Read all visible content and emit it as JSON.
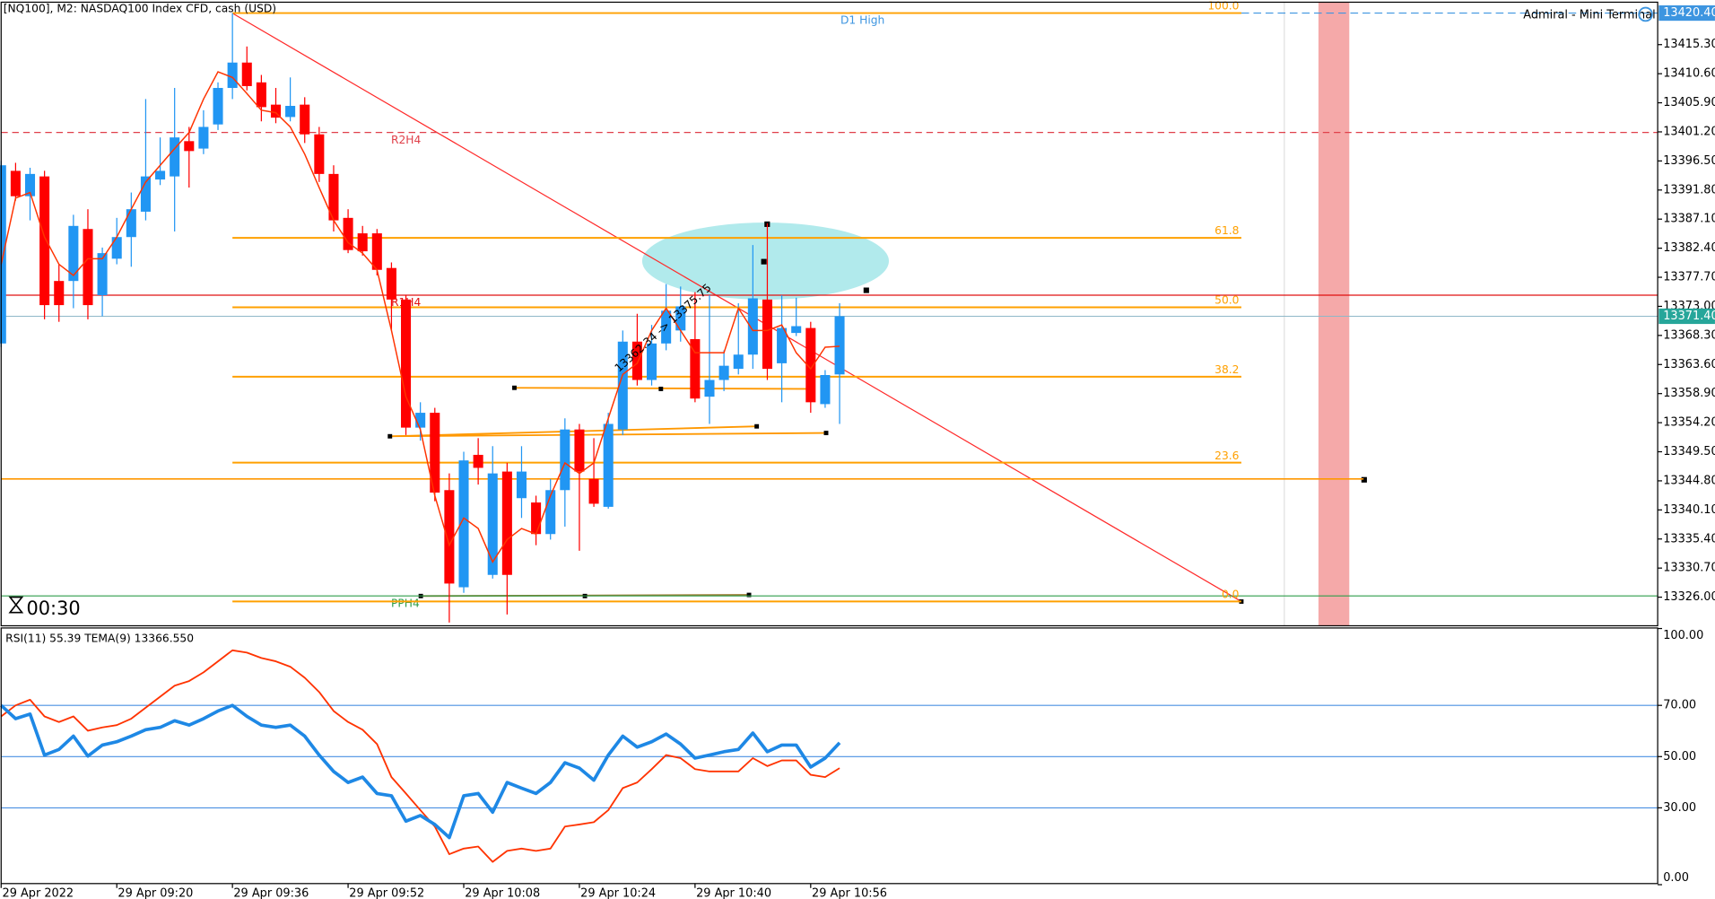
{
  "chart_data": [
    {
      "type": "candlestick",
      "title": "[NQ100], M2:  NASDAQ100 Index CFD, cash (USD)",
      "categories": [
        "29 Apr 2022",
        null,
        null,
        null,
        null,
        null,
        null,
        null,
        "29 Apr 09:20",
        null,
        null,
        null,
        null,
        null,
        null,
        null,
        "29 Apr 09:36",
        null,
        null,
        null,
        null,
        null,
        null,
        null,
        "29 Apr 09:52",
        null,
        null,
        null,
        null,
        null,
        null,
        null,
        "29 Apr 10:08",
        null,
        null,
        null,
        null,
        null,
        null,
        null,
        "29 Apr 10:24",
        null,
        null,
        null,
        null,
        null,
        null,
        null,
        "29 Apr 10:40",
        null,
        null,
        null,
        null,
        null,
        null,
        null,
        "29 Apr 10:56",
        null,
        null
      ],
      "open": [
        13367.0,
        13394.9,
        13390.8,
        13394.0,
        13377.1,
        13377.1,
        13385.5,
        13374.8,
        13380.7,
        13384.2,
        13388.3,
        13393.5,
        13394.0,
        13399.7,
        13398.5,
        13402.4,
        13408.3,
        13412.4,
        13409.2,
        13405.6,
        13403.6,
        13405.6,
        13400.8,
        13394.4,
        13387.3,
        13384.8,
        13384.8,
        13379.2,
        13374.1,
        13353.4,
        13355.8,
        13343.3,
        13327.6,
        13349.0,
        13329.6,
        13346.3,
        13342.0,
        13341.3,
        13336.2,
        13343.3,
        13353.1,
        13345.1,
        13340.6,
        13353.1,
        13367.3,
        13361.1,
        13367.0,
        13369.1,
        13367.7,
        13358.4,
        13361.1,
        13362.9,
        13365.2,
        13374.1,
        13363.8,
        13368.7,
        13369.5,
        13357.2,
        13362.0
      ],
      "high": [
        13396.5,
        13396.2,
        13395.4,
        13394.9,
        13379.8,
        13387.8,
        13388.7,
        13382.5,
        13387.3,
        13391.4,
        13406.5,
        13400.3,
        13408.3,
        13402.0,
        13404.7,
        13409.2,
        13420.4,
        13415.0,
        13410.4,
        13408.3,
        13410.0,
        13406.8,
        13402.0,
        13395.8,
        13388.7,
        13386.0,
        13385.5,
        13380.1,
        13374.8,
        13357.5,
        13356.6,
        13346.0,
        13349.5,
        13351.7,
        13350.4,
        13347.7,
        13350.4,
        13342.4,
        13345.1,
        13354.9,
        13354.0,
        13351.7,
        13355.8,
        13369.1,
        13371.8,
        13370.0,
        13376.6,
        13376.2,
        13375.3,
        13374.8,
        13365.9,
        13373.5,
        13382.9,
        13386.4,
        13374.8,
        13374.4,
        13370.5,
        13362.7,
        13373.5
      ],
      "low": [
        13366.4,
        13390.1,
        13386.9,
        13370.9,
        13370.5,
        13372.7,
        13370.9,
        13371.4,
        13379.8,
        13379.4,
        13386.9,
        13392.6,
        13385.1,
        13392.2,
        13397.6,
        13401.5,
        13406.5,
        13407.9,
        13402.9,
        13402.6,
        13402.9,
        13399.4,
        13393.1,
        13385.1,
        13381.6,
        13381.2,
        13378.0,
        13369.1,
        13352.2,
        13351.3,
        13341.5,
        13321.9,
        13326.7,
        13344.2,
        13329.0,
        13323.2,
        13338.8,
        13334.4,
        13335.3,
        13337.4,
        13333.5,
        13340.6,
        13340.3,
        13352.2,
        13360.2,
        13360.2,
        13365.9,
        13367.3,
        13357.5,
        13354.0,
        13359.3,
        13362.0,
        13362.9,
        13361.1,
        13357.5,
        13368.2,
        13355.8,
        13356.6,
        13354.0
      ],
      "close": [
        13395.8,
        13390.8,
        13394.4,
        13373.2,
        13373.2,
        13386.0,
        13373.2,
        13381.6,
        13384.2,
        13388.7,
        13394.0,
        13394.9,
        13400.3,
        13398.1,
        13402.0,
        13408.3,
        13412.4,
        13408.6,
        13405.2,
        13403.5,
        13405.4,
        13400.8,
        13394.4,
        13386.9,
        13382.1,
        13381.9,
        13378.9,
        13374.1,
        13353.4,
        13355.8,
        13342.9,
        13328.2,
        13348.1,
        13346.9,
        13346.0,
        13329.6,
        13346.3,
        13336.2,
        13343.3,
        13353.1,
        13346.3,
        13341.1,
        13354.0,
        13367.3,
        13361.1,
        13367.0,
        13372.3,
        13373.0,
        13358.1,
        13361.1,
        13363.4,
        13365.2,
        13374.3,
        13362.9,
        13369.5,
        13369.8,
        13357.5,
        13361.9,
        13371.4
      ],
      "tema": [
        13379.8,
        13390.5,
        13391.4,
        13384.2,
        13379.8,
        13378.0,
        13380.7,
        13380.7,
        13384.2,
        13388.7,
        13393.1,
        13395.8,
        13398.5,
        13401.1,
        13406.5,
        13410.9,
        13410.0,
        13407.4,
        13404.7,
        13404.3,
        13402.0,
        13397.6,
        13392.2,
        13386.9,
        13383.3,
        13381.6,
        13378.9,
        13369.1,
        13358.4,
        13353.1,
        13342.4,
        13334.4,
        13338.8,
        13337.1,
        13331.7,
        13335.3,
        13337.1,
        13336.2,
        13342.4,
        13347.7,
        13346.0,
        13347.7,
        13354.9,
        13362.0,
        13363.8,
        13369.1,
        13372.7,
        13369.1,
        13365.5,
        13365.5,
        13365.5,
        13372.7,
        13369.1,
        13369.1,
        13370.0,
        13365.5,
        13362.9,
        13366.4,
        13366.55
      ],
      "up_color": "#2196f3",
      "down_color": "#ff0000",
      "tema_color": "#ff3300",
      "ylim": [
        13321.5,
        13421.8
      ],
      "yticks": [
        {
          "value": 13415.3,
          "label": "13415.30"
        },
        {
          "value": 13410.6,
          "label": "13410.60"
        },
        {
          "value": 13405.9,
          "label": "13405.90"
        },
        {
          "value": 13401.2,
          "label": "13401.20"
        },
        {
          "value": 13396.5,
          "label": "13396.50"
        },
        {
          "value": 13391.8,
          "label": "13391.80"
        },
        {
          "value": 13387.1,
          "label": "13387.10"
        },
        {
          "value": 13382.4,
          "label": "13382.40"
        },
        {
          "value": 13377.7,
          "label": "13377.70"
        },
        {
          "value": 13373.0,
          "label": "13373.00"
        },
        {
          "value": 13368.3,
          "label": "13368.30"
        },
        {
          "value": 13363.6,
          "label": "13363.60"
        },
        {
          "value": 13358.9,
          "label": "13358.90"
        },
        {
          "value": 13354.2,
          "label": "13354.20"
        },
        {
          "value": 13349.5,
          "label": "13349.50"
        },
        {
          "value": 13344.8,
          "label": "13344.80"
        },
        {
          "value": 13340.1,
          "label": "13340.10"
        },
        {
          "value": 13335.4,
          "label": "13335.40"
        },
        {
          "value": 13330.7,
          "label": "13330.70"
        },
        {
          "value": 13326.0,
          "label": "13326.00"
        }
      ],
      "price_markers": [
        {
          "value": 13420.4,
          "label": "13420.40",
          "color": "#3d95e0"
        },
        {
          "value": 13371.4,
          "label": "13371.40",
          "color": "#26a69a"
        }
      ],
      "d1_high": {
        "label": "D1 High",
        "value": 13420.4,
        "color": "#3d95e0"
      },
      "fib": {
        "high": 13420.4,
        "low": 13325.3,
        "color": "#ffa000",
        "levels": [
          {
            "value": 100,
            "label": "100.0"
          },
          {
            "value": 61.8,
            "label": "61.8"
          },
          {
            "value": 50,
            "label": "50.0"
          },
          {
            "value": 38.2,
            "label": "38.2"
          },
          {
            "value": 23.6,
            "label": "23.6"
          },
          {
            "value": 0,
            "label": "0.0"
          }
        ]
      },
      "pivots": [
        {
          "label": "R2H4",
          "value": 13401.1,
          "color": "#e0404a",
          "dashed": true
        },
        {
          "label": "R1H4",
          "value": 13374.8,
          "color": "#e01010",
          "dashed": false
        },
        {
          "label": "PPH4",
          "value": 13326.2,
          "color": "#2e9e4a",
          "dashed": false
        }
      ],
      "level_line": {
        "value": 13345.1,
        "color": "#ff9800"
      },
      "annotation": "13362.34 -> 13375.75",
      "timer": "00:30",
      "panel_label": "Admiral - Mini Terminal"
    },
    {
      "type": "line",
      "title": "RSI(11) 55.39 TEMA(9) 13366.550",
      "series": [
        {
          "color": "#1e88e5",
          "values": [
            70.0,
            64.8,
            66.6,
            50.6,
            52.8,
            58.0,
            50.2,
            54.5,
            55.8,
            58.0,
            60.5,
            61.4,
            64.0,
            62.3,
            64.8,
            67.8,
            70.0,
            65.7,
            62.3,
            61.4,
            62.3,
            58.0,
            50.6,
            44.2,
            39.9,
            42.0,
            35.6,
            34.7,
            24.8,
            27.0,
            23.5,
            18.4,
            34.7,
            35.6,
            28.3,
            39.9,
            37.7,
            35.6,
            39.9,
            47.6,
            45.5,
            40.8,
            50.6,
            58.0,
            53.7,
            55.8,
            58.8,
            54.9,
            49.4,
            50.6,
            51.9,
            52.8,
            59.2,
            51.9,
            54.5,
            54.5,
            45.9,
            49.4,
            55.39
          ]
        },
        {
          "color": "#ff3300",
          "values": [
            65.7,
            70.0,
            72.2,
            65.7,
            63.5,
            65.7,
            60.1,
            61.4,
            62.3,
            64.8,
            69.1,
            73.4,
            77.7,
            79.5,
            82.9,
            87.2,
            91.5,
            90.6,
            88.5,
            87.2,
            85.1,
            80.8,
            75.2,
            67.8,
            63.5,
            60.5,
            54.9,
            42.0,
            35.6,
            29.1,
            22.7,
            11.9,
            14.1,
            14.9,
            8.9,
            13.2,
            14.1,
            13.2,
            14.1,
            22.7,
            23.5,
            24.4,
            29.1,
            37.7,
            39.9,
            45.1,
            50.6,
            49.4,
            45.1,
            44.2,
            44.2,
            44.2,
            49.4,
            46.3,
            48.5,
            48.5,
            42.9,
            42.0,
            45.5
          ]
        }
      ],
      "ylim": [
        0,
        100
      ],
      "yticks": [
        {
          "value": 100,
          "label": "100.00"
        },
        {
          "value": 70,
          "label": "70.00"
        },
        {
          "value": 50,
          "label": "50.00"
        },
        {
          "value": 30,
          "label": "30.00"
        },
        {
          "value": 0,
          "label": "0.00"
        }
      ],
      "levels": [
        70,
        50,
        30
      ],
      "level_color": "#4a90e2"
    }
  ]
}
